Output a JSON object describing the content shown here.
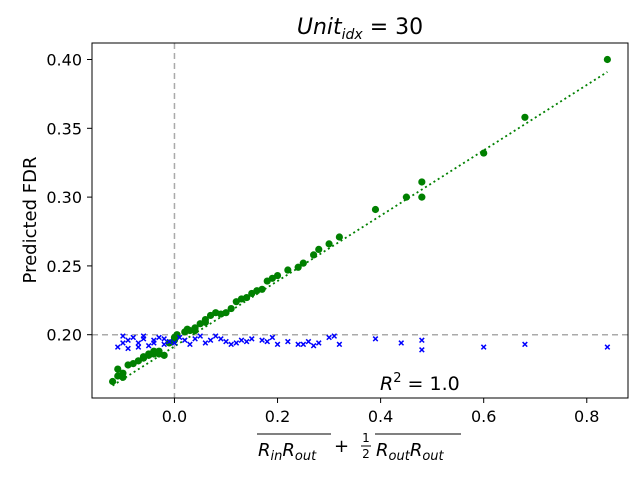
{
  "chart_data": {
    "type": "scatter",
    "title": {
      "base": "Unit",
      "sub": "idx",
      "rest": " = 30"
    },
    "xlabel": {
      "term1_a": "R",
      "term1_a_sub": "in",
      "term1_b": "R",
      "term1_b_sub": "out",
      "plus": " + ",
      "half_num": "1",
      "half_den": "2",
      "term2_a": "R",
      "term2_a_sub": "out",
      "term2_b": "R",
      "term2_b_sub": "out"
    },
    "ylabel": "Predicted FDR",
    "annotation": {
      "base": "R",
      "sup": "2",
      "rest": " = 1.0"
    },
    "xlim": [
      -0.16,
      0.88
    ],
    "ylim": [
      0.154,
      0.412
    ],
    "xticks": [
      0.0,
      0.2,
      0.4,
      0.6,
      0.8
    ],
    "xtick_labels": [
      "0.0",
      "0.2",
      "0.4",
      "0.6",
      "0.8"
    ],
    "yticks": [
      0.2,
      0.25,
      0.3,
      0.35,
      0.4
    ],
    "ytick_labels": [
      "0.20",
      "0.25",
      "0.30",
      "0.35",
      "0.40"
    ],
    "reference_lines": {
      "vertical_x": 0.0,
      "horizontal_y": 0.2,
      "color": "#aaaaaa",
      "style": "dashed"
    },
    "fit_line": {
      "color": "#008000",
      "style": "dotted",
      "x": [
        -0.12,
        0.84
      ],
      "y": [
        0.163,
        0.391
      ]
    },
    "series": [
      {
        "marker": "circle",
        "color": "#008000",
        "x": [
          -0.12,
          -0.11,
          -0.11,
          -0.1,
          -0.1,
          -0.09,
          -0.08,
          -0.07,
          -0.06,
          -0.06,
          -0.05,
          -0.05,
          -0.04,
          -0.04,
          -0.03,
          -0.03,
          -0.02,
          -0.01,
          0.0,
          0.0,
          0.005,
          0.02,
          0.025,
          0.03,
          0.04,
          0.04,
          0.05,
          0.06,
          0.06,
          0.07,
          0.08,
          0.09,
          0.1,
          0.11,
          0.12,
          0.13,
          0.14,
          0.15,
          0.16,
          0.17,
          0.18,
          0.19,
          0.2,
          0.22,
          0.24,
          0.25,
          0.27,
          0.28,
          0.3,
          0.32,
          0.39,
          0.45,
          0.48,
          0.48,
          0.6,
          0.68,
          0.84
        ],
        "y": [
          0.166,
          0.17,
          0.175,
          0.169,
          0.172,
          0.178,
          0.179,
          0.181,
          0.183,
          0.184,
          0.185,
          0.186,
          0.186,
          0.188,
          0.188,
          0.186,
          0.185,
          0.194,
          0.196,
          0.198,
          0.2,
          0.202,
          0.204,
          0.203,
          0.205,
          0.203,
          0.208,
          0.211,
          0.209,
          0.214,
          0.216,
          0.215,
          0.216,
          0.219,
          0.224,
          0.226,
          0.227,
          0.23,
          0.232,
          0.233,
          0.239,
          0.241,
          0.243,
          0.247,
          0.249,
          0.252,
          0.258,
          0.262,
          0.266,
          0.271,
          0.291,
          0.3,
          0.311,
          0.3,
          0.332,
          0.358,
          0.4
        ]
      },
      {
        "marker": "x",
        "color": "#0000ff",
        "x": [
          -0.11,
          -0.1,
          -0.1,
          -0.09,
          -0.09,
          -0.08,
          -0.07,
          -0.07,
          -0.06,
          -0.06,
          -0.05,
          -0.04,
          -0.04,
          -0.03,
          -0.02,
          -0.02,
          -0.01,
          0.0,
          0.01,
          0.02,
          0.03,
          0.04,
          0.05,
          0.06,
          0.07,
          0.08,
          0.09,
          0.1,
          0.11,
          0.12,
          0.13,
          0.14,
          0.15,
          0.17,
          0.18,
          0.19,
          0.2,
          0.22,
          0.24,
          0.25,
          0.26,
          0.27,
          0.28,
          0.3,
          0.31,
          0.32,
          0.39,
          0.44,
          0.48,
          0.48,
          0.6,
          0.68,
          0.84
        ],
        "y": [
          0.191,
          0.194,
          0.199,
          0.19,
          0.196,
          0.198,
          0.191,
          0.194,
          0.197,
          0.199,
          0.192,
          0.196,
          0.194,
          0.198,
          0.193,
          0.197,
          0.195,
          0.194,
          0.198,
          0.196,
          0.193,
          0.197,
          0.199,
          0.194,
          0.196,
          0.199,
          0.197,
          0.195,
          0.193,
          0.194,
          0.196,
          0.195,
          0.197,
          0.196,
          0.195,
          0.198,
          0.193,
          0.195,
          0.193,
          0.193,
          0.195,
          0.192,
          0.194,
          0.198,
          0.199,
          0.193,
          0.197,
          0.194,
          0.196,
          0.189,
          0.191,
          0.193,
          0.191
        ]
      }
    ]
  }
}
